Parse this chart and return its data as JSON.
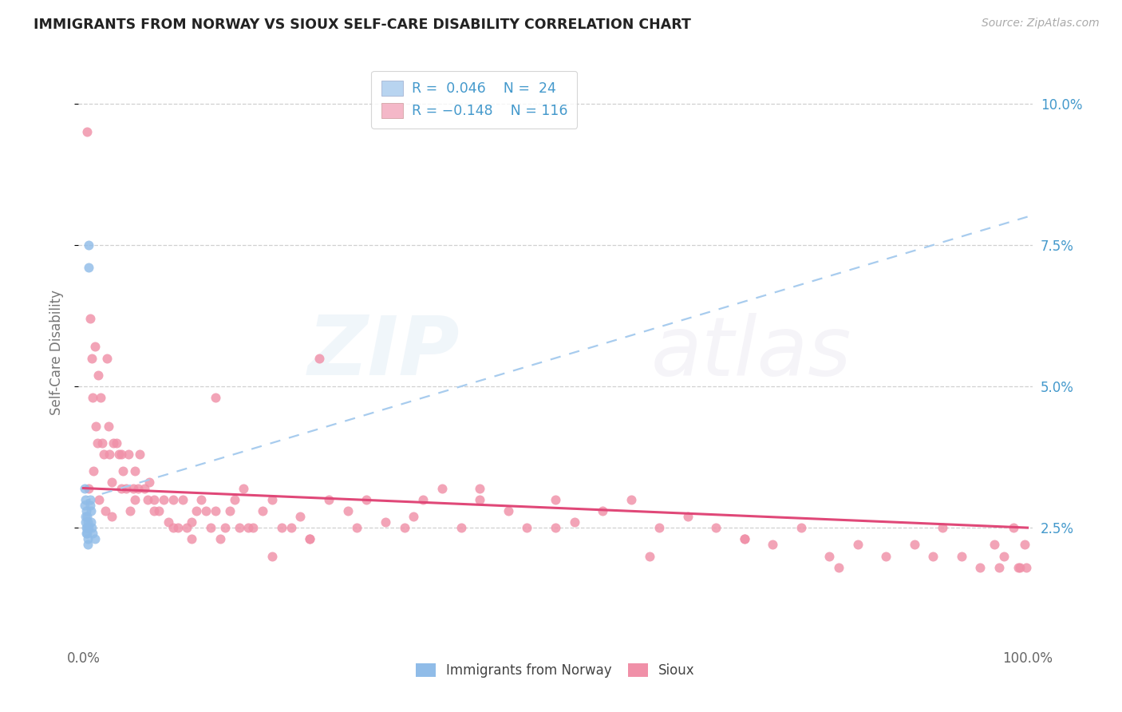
{
  "title": "IMMIGRANTS FROM NORWAY VS SIOUX SELF-CARE DISABILITY CORRELATION CHART",
  "source": "Source: ZipAtlas.com",
  "ylabel": "Self-Care Disability",
  "ytick_labels": [
    "2.5%",
    "5.0%",
    "7.5%",
    "10.0%"
  ],
  "ytick_values": [
    0.025,
    0.05,
    0.075,
    0.1
  ],
  "xtick_labels": [
    "0.0%",
    "100.0%"
  ],
  "xtick_values": [
    0.0,
    1.0
  ],
  "xlim": [
    -0.005,
    1.005
  ],
  "ylim": [
    0.005,
    0.107
  ],
  "blue_r": 0.046,
  "pink_r": -0.148,
  "blue_line_y0": 0.03,
  "blue_line_y1": 0.08,
  "pink_line_y0": 0.032,
  "pink_line_y1": 0.025,
  "blue_scatter_color": "#90bce8",
  "pink_scatter_color": "#f090a8",
  "blue_line_color": "#a8ccee",
  "pink_line_color": "#e04878",
  "title_color": "#222222",
  "source_color": "#aaaaaa",
  "grid_color": "#d0d0d0",
  "background_color": "#ffffff",
  "legend_r_color": "#4499cc",
  "legend_n_color": "#4499cc",
  "norway_x": [
    0.001,
    0.001,
    0.002,
    0.002,
    0.002,
    0.003,
    0.003,
    0.003,
    0.004,
    0.004,
    0.004,
    0.005,
    0.005,
    0.005,
    0.006,
    0.006,
    0.006,
    0.007,
    0.007,
    0.008,
    0.008,
    0.009,
    0.01,
    0.012
  ],
  "norway_y": [
    0.032,
    0.029,
    0.03,
    0.027,
    0.026,
    0.028,
    0.025,
    0.024,
    0.027,
    0.025,
    0.024,
    0.026,
    0.023,
    0.022,
    0.075,
    0.071,
    0.025,
    0.03,
    0.029,
    0.028,
    0.026,
    0.025,
    0.024,
    0.023
  ],
  "sioux_x": [
    0.004,
    0.007,
    0.009,
    0.01,
    0.012,
    0.013,
    0.015,
    0.016,
    0.018,
    0.02,
    0.022,
    0.025,
    0.027,
    0.028,
    0.03,
    0.032,
    0.035,
    0.038,
    0.04,
    0.042,
    0.045,
    0.048,
    0.05,
    0.053,
    0.055,
    0.058,
    0.06,
    0.065,
    0.068,
    0.07,
    0.075,
    0.08,
    0.085,
    0.09,
    0.095,
    0.1,
    0.105,
    0.11,
    0.115,
    0.12,
    0.125,
    0.13,
    0.135,
    0.14,
    0.145,
    0.15,
    0.155,
    0.16,
    0.17,
    0.175,
    0.18,
    0.19,
    0.2,
    0.21,
    0.22,
    0.23,
    0.24,
    0.25,
    0.26,
    0.28,
    0.3,
    0.32,
    0.34,
    0.36,
    0.38,
    0.4,
    0.42,
    0.45,
    0.47,
    0.5,
    0.52,
    0.55,
    0.58,
    0.61,
    0.64,
    0.67,
    0.7,
    0.73,
    0.76,
    0.79,
    0.82,
    0.85,
    0.88,
    0.91,
    0.93,
    0.95,
    0.965,
    0.975,
    0.985,
    0.992,
    0.997,
    0.999,
    0.006,
    0.011,
    0.017,
    0.023,
    0.03,
    0.04,
    0.055,
    0.075,
    0.095,
    0.115,
    0.14,
    0.165,
    0.2,
    0.24,
    0.29,
    0.35,
    0.42,
    0.5,
    0.6,
    0.7,
    0.8,
    0.9,
    0.97,
    0.99
  ],
  "sioux_y": [
    0.095,
    0.062,
    0.055,
    0.048,
    0.057,
    0.043,
    0.04,
    0.052,
    0.048,
    0.04,
    0.038,
    0.055,
    0.043,
    0.038,
    0.033,
    0.04,
    0.04,
    0.038,
    0.032,
    0.035,
    0.032,
    0.038,
    0.028,
    0.032,
    0.035,
    0.032,
    0.038,
    0.032,
    0.03,
    0.033,
    0.03,
    0.028,
    0.03,
    0.026,
    0.03,
    0.025,
    0.03,
    0.025,
    0.026,
    0.028,
    0.03,
    0.028,
    0.025,
    0.048,
    0.023,
    0.025,
    0.028,
    0.03,
    0.032,
    0.025,
    0.025,
    0.028,
    0.03,
    0.025,
    0.025,
    0.027,
    0.023,
    0.055,
    0.03,
    0.028,
    0.03,
    0.026,
    0.025,
    0.03,
    0.032,
    0.025,
    0.032,
    0.028,
    0.025,
    0.03,
    0.026,
    0.028,
    0.03,
    0.025,
    0.027,
    0.025,
    0.023,
    0.022,
    0.025,
    0.02,
    0.022,
    0.02,
    0.022,
    0.025,
    0.02,
    0.018,
    0.022,
    0.02,
    0.025,
    0.018,
    0.022,
    0.018,
    0.032,
    0.035,
    0.03,
    0.028,
    0.027,
    0.038,
    0.03,
    0.028,
    0.025,
    0.023,
    0.028,
    0.025,
    0.02,
    0.023,
    0.025,
    0.027,
    0.03,
    0.025,
    0.02,
    0.023,
    0.018,
    0.02,
    0.018,
    0.018
  ]
}
